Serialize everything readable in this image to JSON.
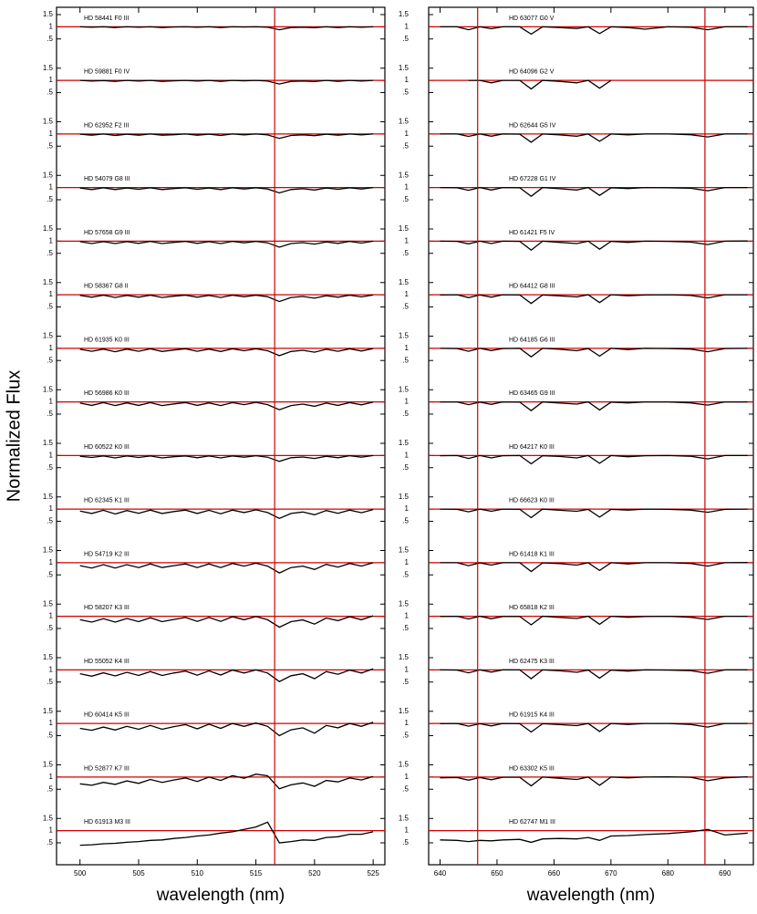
{
  "figure": {
    "ylabel": "Normalized Flux"
  },
  "chart_data": [
    {
      "type": "line",
      "xlabel": "wavelength (nm)",
      "xlim": [
        498,
        526
      ],
      "xticks": [
        500,
        505,
        510,
        515,
        520,
        525
      ],
      "ylim": [
        -0.4,
        1.8
      ],
      "yticks": [
        {
          "value": 0.5,
          "label": ".5"
        },
        1,
        1.5
      ],
      "reference_color": "#d00000",
      "reference_y": 1,
      "reference_x": [
        516.6
      ],
      "x": [
        500,
        501,
        502,
        503,
        504,
        505,
        506,
        507,
        508,
        509,
        510,
        511,
        512,
        513,
        514,
        515,
        516,
        517,
        518,
        519,
        520,
        521,
        522,
        523,
        524,
        525
      ],
      "series": [
        {
          "name": "HD 58441 F0 III",
          "color": "#000000",
          "values": [
            1,
            0.98,
            1,
            0.97,
            1,
            0.98,
            1,
            0.97,
            0.99,
            1,
            0.98,
            1,
            0.97,
            1,
            0.99,
            1,
            0.98,
            0.88,
            0.97,
            0.98,
            0.96,
            1,
            0.97,
            1,
            0.98,
            1
          ]
        },
        {
          "name": "HD 59881 F0 IV",
          "color": "#000000",
          "values": [
            1,
            0.97,
            0.99,
            0.96,
            1,
            0.97,
            1,
            0.96,
            0.98,
            1,
            0.97,
            1,
            0.96,
            1,
            0.98,
            1,
            0.97,
            0.85,
            0.96,
            0.97,
            0.95,
            1,
            0.96,
            1,
            0.97,
            1
          ]
        },
        {
          "name": "HD 62952 F2 III",
          "color": "#000000",
          "values": [
            0.99,
            0.95,
            1,
            0.94,
            0.99,
            0.95,
            1,
            0.95,
            0.97,
            1,
            0.95,
            0.99,
            0.94,
            1,
            0.96,
            1,
            0.96,
            0.82,
            0.94,
            0.96,
            0.93,
            0.99,
            0.95,
            1,
            0.96,
            1
          ]
        },
        {
          "name": "HD 54079 G8 III",
          "color": "#000000",
          "values": [
            0.98,
            0.92,
            0.99,
            0.92,
            0.98,
            0.93,
            0.99,
            0.92,
            0.96,
            0.99,
            0.93,
            0.98,
            0.92,
            0.99,
            0.94,
            0.99,
            0.94,
            0.78,
            0.92,
            0.95,
            0.9,
            0.98,
            0.93,
            0.99,
            0.94,
            1
          ]
        },
        {
          "name": "HD 57658 G9 III",
          "color": "#000000",
          "values": [
            0.98,
            0.9,
            0.98,
            0.9,
            0.98,
            0.91,
            0.99,
            0.9,
            0.95,
            0.99,
            0.91,
            0.98,
            0.9,
            0.99,
            0.93,
            0.99,
            0.93,
            0.75,
            0.9,
            0.94,
            0.88,
            0.97,
            0.91,
            0.99,
            0.92,
            1
          ]
        },
        {
          "name": "HD 58367 G8 II",
          "color": "#000000",
          "values": [
            0.97,
            0.9,
            0.98,
            0.89,
            0.97,
            0.9,
            0.98,
            0.89,
            0.94,
            0.98,
            0.9,
            0.97,
            0.89,
            0.98,
            0.92,
            0.98,
            0.92,
            0.72,
            0.89,
            0.93,
            0.86,
            0.96,
            0.9,
            0.98,
            0.91,
            0.99
          ]
        },
        {
          "name": "HD 61935 K0 III",
          "color": "#000000",
          "values": [
            0.96,
            0.88,
            0.97,
            0.86,
            0.97,
            0.88,
            0.98,
            0.87,
            0.93,
            0.98,
            0.88,
            0.97,
            0.87,
            0.98,
            0.9,
            0.98,
            0.9,
            0.7,
            0.87,
            0.92,
            0.84,
            0.96,
            0.88,
            0.98,
            0.89,
            0.99
          ]
        },
        {
          "name": "HD 56986 K0 III",
          "color": "#000000",
          "values": [
            0.95,
            0.86,
            0.97,
            0.85,
            0.96,
            0.86,
            0.97,
            0.85,
            0.92,
            0.97,
            0.86,
            0.96,
            0.85,
            0.97,
            0.89,
            0.98,
            0.89,
            0.68,
            0.85,
            0.91,
            0.82,
            0.95,
            0.86,
            0.97,
            0.88,
            0.99
          ]
        },
        {
          "name": "HD 60522 K0 III",
          "color": "#000000",
          "values": [
            0.97,
            0.92,
            0.98,
            0.9,
            0.98,
            0.92,
            0.98,
            0.9,
            0.95,
            0.98,
            0.91,
            0.98,
            0.9,
            0.98,
            0.93,
            0.99,
            0.93,
            0.76,
            0.91,
            0.94,
            0.88,
            0.97,
            0.91,
            0.99,
            0.93,
            1
          ]
        },
        {
          "name": "HD 62345 K1 III",
          "color": "#000000",
          "values": [
            0.92,
            0.82,
            0.95,
            0.8,
            0.94,
            0.83,
            0.96,
            0.82,
            0.9,
            0.96,
            0.82,
            0.95,
            0.81,
            0.96,
            0.86,
            0.97,
            0.86,
            0.62,
            0.82,
            0.88,
            0.77,
            0.94,
            0.83,
            0.96,
            0.85,
            0.98
          ]
        },
        {
          "name": "HD 54719 K2 III",
          "color": "#000000",
          "values": [
            0.88,
            0.78,
            0.92,
            0.78,
            0.92,
            0.8,
            0.95,
            0.8,
            0.88,
            0.95,
            0.8,
            0.95,
            0.8,
            0.97,
            0.86,
            0.98,
            0.86,
            0.58,
            0.8,
            0.86,
            0.72,
            0.93,
            0.82,
            0.97,
            0.86,
            1
          ]
        },
        {
          "name": "HD 58207 K3 III",
          "color": "#000000",
          "values": [
            0.86,
            0.76,
            0.9,
            0.76,
            0.91,
            0.78,
            0.94,
            0.78,
            0.87,
            0.95,
            0.79,
            0.95,
            0.79,
            0.98,
            0.86,
            0.99,
            0.86,
            0.55,
            0.78,
            0.85,
            0.68,
            0.93,
            0.82,
            0.98,
            0.86,
            1.02
          ]
        },
        {
          "name": "HD 55052 K4 III",
          "color": "#000000",
          "values": [
            0.84,
            0.74,
            0.88,
            0.75,
            0.9,
            0.77,
            0.93,
            0.77,
            0.87,
            0.95,
            0.78,
            0.96,
            0.79,
            0.99,
            0.87,
            1,
            0.87,
            0.52,
            0.76,
            0.84,
            0.64,
            0.93,
            0.82,
            0.99,
            0.87,
            1.04
          ]
        },
        {
          "name": "HD 60414 K5 III",
          "color": "#000000",
          "values": [
            0.8,
            0.72,
            0.85,
            0.73,
            0.88,
            0.76,
            0.92,
            0.76,
            0.87,
            0.95,
            0.78,
            0.97,
            0.8,
            1,
            0.88,
            1.02,
            0.88,
            0.5,
            0.74,
            0.82,
            0.6,
            0.92,
            0.82,
            1,
            0.88,
            1.05
          ]
        },
        {
          "name": "HD 52877 K7 III",
          "color": "#000000",
          "values": [
            0.72,
            0.66,
            0.78,
            0.7,
            0.84,
            0.74,
            0.9,
            0.78,
            0.88,
            0.96,
            0.82,
            1,
            0.86,
            1.06,
            0.95,
            1.12,
            1.05,
            0.52,
            0.68,
            0.76,
            0.62,
            0.86,
            0.8,
            0.96,
            0.88,
            1.02
          ]
        },
        {
          "name": "HD 61913 M3 III",
          "color": "#000000",
          "values": [
            0.4,
            0.42,
            0.46,
            0.48,
            0.52,
            0.55,
            0.6,
            0.62,
            0.68,
            0.72,
            0.78,
            0.82,
            0.9,
            0.95,
            1.05,
            1.15,
            1.35,
            0.5,
            0.55,
            0.62,
            0.6,
            0.72,
            0.75,
            0.85,
            0.85,
            0.95
          ]
        }
      ]
    },
    {
      "type": "line",
      "xlabel": "wavelength (nm)",
      "xlim": [
        638,
        695
      ],
      "xticks": [
        640,
        650,
        660,
        670,
        680,
        690
      ],
      "ylim": [
        -0.4,
        1.8
      ],
      "yticks": [
        {
          "value": 0.5,
          "label": ".5"
        },
        1,
        1.5
      ],
      "reference_color": "#d00000",
      "reference_y": 1,
      "reference_x": [
        646.6,
        686.5
      ],
      "x": [
        640,
        643,
        645,
        647,
        649,
        651,
        654,
        656,
        658,
        661,
        664,
        666,
        668,
        670,
        673,
        676,
        680,
        684,
        687,
        690,
        694
      ],
      "series": [
        {
          "name": "HD 63077 G0 V",
          "color": "#000000",
          "values": [
            1,
            1,
            0.88,
            1,
            0.92,
            1,
            1,
            0.7,
            1,
            0.97,
            0.93,
            1,
            0.72,
            1,
            0.97,
            0.9,
            1,
            0.98,
            0.88,
            1,
            1
          ]
        },
        {
          "name": "HD 64096 G2 V",
          "color": "#000000",
          "values": [
            null,
            null,
            1,
            1,
            0.9,
            1,
            1,
            0.65,
            1,
            0.96,
            0.9,
            1,
            0.68,
            1,
            null,
            null,
            null,
            null,
            null,
            null,
            null
          ]
        },
        {
          "name": "HD 62644 G5 IV",
          "color": "#000000",
          "values": [
            1,
            1,
            0.9,
            1,
            0.91,
            1,
            0.99,
            0.66,
            1,
            0.96,
            0.91,
            1,
            0.7,
            1,
            0.96,
            1,
            1,
            0.97,
            0.88,
            1,
            1
          ]
        },
        {
          "name": "HD 67228 G1 IV",
          "color": "#000000",
          "values": [
            1,
            0.99,
            0.89,
            1,
            0.9,
            1,
            0.99,
            0.64,
            1,
            0.95,
            0.9,
            1,
            0.68,
            0.99,
            0.96,
            1,
            0.99,
            0.97,
            0.87,
            1,
            1
          ]
        },
        {
          "name": "HD 61421 F5 IV",
          "color": "#000000",
          "values": [
            1,
            0.99,
            0.89,
            1,
            0.9,
            1,
            0.99,
            0.63,
            1,
            0.95,
            0.9,
            1,
            0.67,
            0.99,
            0.95,
            1,
            0.99,
            0.96,
            0.86,
            1,
            1.01
          ]
        },
        {
          "name": "HD 64412 G8 III",
          "color": "#000000",
          "values": [
            0.99,
            1,
            0.88,
            0.99,
            0.9,
            1,
            0.99,
            0.64,
            0.99,
            0.95,
            0.91,
            1,
            0.68,
            1,
            0.96,
            0.99,
            1,
            0.97,
            0.87,
            1,
            1
          ]
        },
        {
          "name": "HD 64185 G6 III",
          "color": "#000000",
          "values": [
            1,
            0.99,
            0.88,
            1,
            0.91,
            0.99,
            1,
            0.65,
            1,
            0.96,
            0.9,
            0.99,
            0.68,
            1,
            0.95,
            1,
            0.99,
            0.97,
            0.86,
            0.99,
            1
          ]
        },
        {
          "name": "HD 63465 G9 III",
          "color": "#000000",
          "values": [
            1,
            1,
            0.89,
            0.99,
            0.9,
            1,
            0.99,
            0.64,
            1,
            0.95,
            0.91,
            1,
            0.67,
            0.99,
            0.96,
            1,
            1,
            0.96,
            0.87,
            1,
            1
          ]
        },
        {
          "name": "HD 64217 K0 III",
          "color": "#000000",
          "values": [
            0.99,
            1,
            0.88,
            1,
            0.9,
            0.99,
            1,
            0.66,
            0.99,
            0.96,
            0.9,
            1,
            0.68,
            1,
            0.95,
            0.99,
            1,
            0.97,
            0.86,
            1,
            1
          ]
        },
        {
          "name": "HD 66623 K0 III",
          "color": "#000000",
          "values": [
            1,
            0.99,
            0.89,
            1,
            0.91,
            1,
            0.99,
            0.65,
            1,
            0.95,
            0.91,
            0.99,
            0.67,
            0.99,
            0.96,
            1,
            0.99,
            0.96,
            0.87,
            0.99,
            1
          ]
        },
        {
          "name": "HD 61418 K1 III",
          "color": "#000000",
          "values": [
            1,
            1,
            0.88,
            0.99,
            0.9,
            1,
            1,
            0.64,
            0.99,
            0.96,
            0.9,
            1,
            0.68,
            1,
            0.95,
            1,
            1,
            0.97,
            0.86,
            1,
            1.01
          ]
        },
        {
          "name": "HD 65818 K2 III",
          "color": "#000000",
          "values": [
            0.99,
            1,
            0.89,
            1,
            0.9,
            0.99,
            0.99,
            0.65,
            1,
            0.95,
            0.91,
            1,
            0.67,
            1,
            0.96,
            0.99,
            1,
            0.96,
            0.87,
            1,
            1
          ]
        },
        {
          "name": "HD 62475 K3 III",
          "color": "#000000",
          "values": [
            1,
            0.99,
            0.88,
            1,
            0.91,
            1,
            1,
            0.64,
            1,
            0.96,
            0.9,
            0.99,
            0.66,
            0.99,
            0.95,
            1,
            0.99,
            0.97,
            0.86,
            1,
            1
          ]
        },
        {
          "name": "HD 61915 K4 III",
          "color": "#000000",
          "values": [
            0.99,
            1,
            0.89,
            0.99,
            0.9,
            1,
            0.99,
            0.65,
            0.99,
            0.95,
            0.91,
            1,
            0.67,
            1,
            0.96,
            1,
            1,
            0.96,
            0.85,
            1,
            1
          ]
        },
        {
          "name": "HD 63302 K5 III",
          "color": "#000000",
          "values": [
            0.97,
            0.98,
            0.87,
            0.98,
            0.89,
            0.99,
            0.99,
            0.64,
            1,
            0.95,
            0.9,
            1,
            0.66,
            1,
            0.97,
            1,
            1.01,
            0.99,
            0.85,
            0.97,
            1.01
          ]
        },
        {
          "name": "HD 62747 M1 III",
          "color": "#000000",
          "values": [
            0.62,
            0.6,
            0.55,
            0.6,
            0.58,
            0.62,
            0.64,
            0.52,
            0.66,
            0.68,
            0.66,
            0.72,
            0.6,
            0.78,
            0.8,
            0.84,
            0.88,
            0.95,
            1.05,
            0.82,
            0.9
          ]
        }
      ]
    }
  ]
}
